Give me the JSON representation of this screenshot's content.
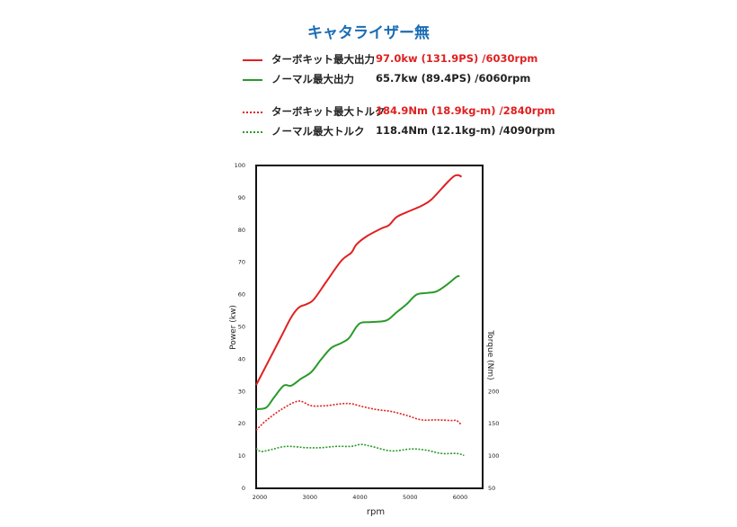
{
  "title": "キャタライザー無",
  "legend": [
    {
      "name": "ターボキット最大出力",
      "value": "97.0kw (131.9PS) /6030rpm",
      "color": "#e02020",
      "style": "solid",
      "value_color": "#e02020"
    },
    {
      "name": "ノーマル最大出力",
      "value": "65.7kw (89.4PS) /6060rpm",
      "color": "#2a9a2a",
      "style": "solid",
      "value_color": "#222222"
    },
    {
      "name": "ターボキット最大トルク",
      "value": "184.9Nm (18.9kg-m) /2840rpm",
      "color": "#e02020",
      "style": "dotted",
      "value_color": "#e02020"
    },
    {
      "name": "ノーマル最大トルク",
      "value": "118.4Nm (12.1kg-m) /4090rpm",
      "color": "#2a9a2a",
      "style": "dotted",
      "value_color": "#222222"
    }
  ],
  "chart_data": {
    "type": "line",
    "xlabel": "rpm",
    "ylabel": "Power (kw)",
    "y2label": "Torque (Nm)",
    "xlim": [
      2000,
      6520
    ],
    "ylim": [
      0,
      100
    ],
    "y2lim": [
      50,
      550
    ],
    "xticks": [
      2000,
      3000,
      4000,
      5000,
      6000
    ],
    "yticks": [
      0,
      10,
      20,
      30,
      40,
      50,
      60,
      70,
      80,
      90,
      100
    ],
    "y2ticks": [
      50,
      100,
      150,
      200
    ],
    "grid": false,
    "series": [
      {
        "name": "ターボキット最大出力",
        "axis": "left",
        "color": "#e02020",
        "style": "solid",
        "x": [
          2000,
          2200,
          2500,
          2700,
          2850,
          3000,
          3150,
          3400,
          3700,
          3900,
          4000,
          4200,
          4500,
          4650,
          4800,
          5000,
          5300,
          5500,
          5800,
          5950,
          6030,
          6100
        ],
        "y": [
          32,
          38,
          47,
          53,
          56,
          57,
          58.5,
          64,
          70.5,
          73,
          75.5,
          78,
          80.5,
          81.5,
          84,
          85.5,
          87.5,
          89.5,
          94.5,
          96.7,
          97,
          96.5
        ]
      },
      {
        "name": "ノーマル最大出力",
        "axis": "left",
        "color": "#2a9a2a",
        "style": "solid",
        "x": [
          2000,
          2200,
          2350,
          2550,
          2700,
          2900,
          3100,
          3300,
          3500,
          3700,
          3850,
          4000,
          4100,
          4300,
          4600,
          4800,
          5000,
          5200,
          5400,
          5600,
          5800,
          6000,
          6060
        ],
        "y": [
          24.5,
          25,
          28,
          31.8,
          31.8,
          34,
          36,
          40,
          43.5,
          45,
          46.5,
          50,
          51.3,
          51.5,
          52,
          54.5,
          57,
          60,
          60.5,
          61,
          63,
          65.5,
          65.7
        ]
      },
      {
        "name": "ターボキット最大トルク",
        "axis": "right",
        "color": "#e02020",
        "style": "dotted",
        "x": [
          2000,
          2200,
          2500,
          2840,
          3100,
          3400,
          3700,
          3900,
          4100,
          4400,
          4700,
          5000,
          5300,
          5600,
          5900,
          6000,
          6100
        ],
        "y": [
          140,
          155,
          172,
          185,
          178,
          178,
          181,
          181,
          177,
          172,
          169,
          163,
          156,
          156,
          155,
          155,
          148
        ]
      },
      {
        "name": "ノーマル最大トルク",
        "axis": "right",
        "color": "#2a9a2a",
        "style": "dotted",
        "x": [
          2000,
          2100,
          2300,
          2600,
          3000,
          3300,
          3600,
          3900,
          4090,
          4300,
          4700,
          5100,
          5400,
          5700,
          6000,
          6150
        ],
        "y": [
          112,
          107,
          110,
          115,
          113,
          113,
          115,
          115,
          118,
          115,
          108,
          111,
          109,
          104,
          104,
          101
        ]
      }
    ]
  }
}
